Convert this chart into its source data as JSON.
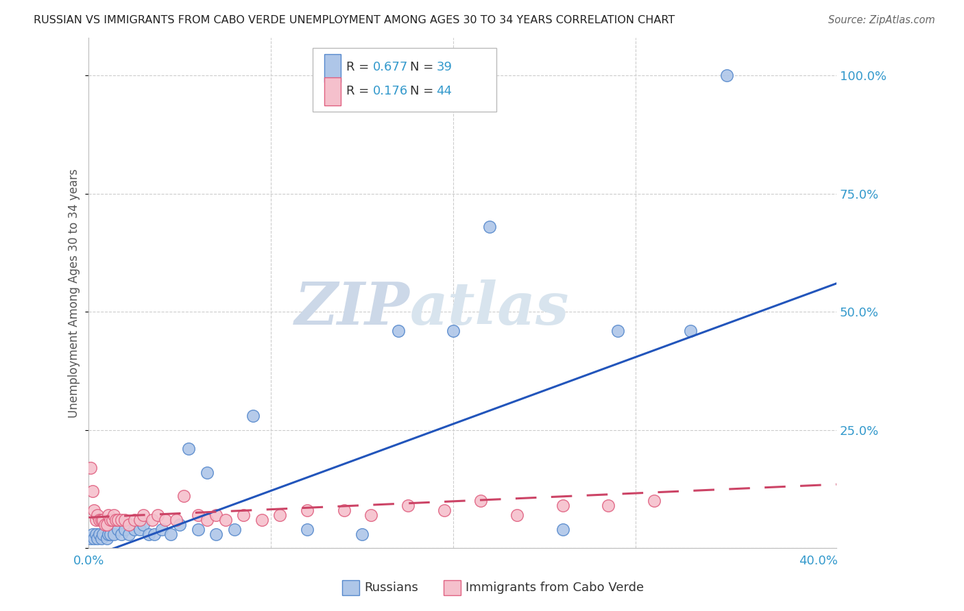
{
  "title": "RUSSIAN VS IMMIGRANTS FROM CABO VERDE UNEMPLOYMENT AMONG AGES 30 TO 34 YEARS CORRELATION CHART",
  "source": "Source: ZipAtlas.com",
  "xlabel_ticks": [
    "0.0%",
    "",
    "",
    "",
    "40.0%"
  ],
  "xlabel_vals": [
    0.0,
    0.1,
    0.2,
    0.3,
    0.4
  ],
  "ylabel": "Unemployment Among Ages 30 to 34 years",
  "ylabel_ticks_right": [
    "100.0%",
    "75.0%",
    "50.0%",
    "25.0%",
    ""
  ],
  "ylabel_vals": [
    1.0,
    0.75,
    0.5,
    0.25,
    0.0
  ],
  "xlim": [
    0.0,
    0.41
  ],
  "ylim": [
    0.0,
    1.08
  ],
  "russian_R": 0.677,
  "russian_N": 39,
  "cabo_verde_R": 0.176,
  "cabo_verde_N": 44,
  "russian_color": "#aec6e8",
  "russian_edge_color": "#5588cc",
  "cabo_verde_color": "#f5c0cc",
  "cabo_verde_edge_color": "#e06080",
  "trend_russian_color": "#2255bb",
  "trend_cabo_verde_color": "#cc4466",
  "watermark_top": "ZIP",
  "watermark_bottom": "atlas",
  "watermark_color": "#ccd8e8",
  "russians_x": [
    0.001,
    0.002,
    0.003,
    0.004,
    0.005,
    0.006,
    0.007,
    0.008,
    0.01,
    0.011,
    0.012,
    0.014,
    0.016,
    0.018,
    0.02,
    0.022,
    0.025,
    0.028,
    0.03,
    0.033,
    0.036,
    0.04,
    0.045,
    0.05,
    0.055,
    0.06,
    0.065,
    0.07,
    0.08,
    0.09,
    0.12,
    0.15,
    0.17,
    0.2,
    0.22,
    0.26,
    0.29,
    0.33,
    0.35
  ],
  "russians_y": [
    0.02,
    0.03,
    0.02,
    0.03,
    0.02,
    0.03,
    0.02,
    0.03,
    0.02,
    0.03,
    0.03,
    0.03,
    0.04,
    0.03,
    0.04,
    0.03,
    0.04,
    0.04,
    0.05,
    0.03,
    0.03,
    0.04,
    0.03,
    0.05,
    0.21,
    0.04,
    0.16,
    0.03,
    0.04,
    0.28,
    0.04,
    0.03,
    0.46,
    0.46,
    0.68,
    0.04,
    0.46,
    0.46,
    1.0
  ],
  "cabo_verde_x": [
    0.001,
    0.002,
    0.003,
    0.004,
    0.005,
    0.006,
    0.007,
    0.008,
    0.009,
    0.01,
    0.011,
    0.012,
    0.013,
    0.014,
    0.015,
    0.016,
    0.018,
    0.02,
    0.022,
    0.025,
    0.028,
    0.03,
    0.035,
    0.038,
    0.042,
    0.048,
    0.052,
    0.06,
    0.065,
    0.07,
    0.075,
    0.085,
    0.095,
    0.105,
    0.12,
    0.14,
    0.155,
    0.175,
    0.195,
    0.215,
    0.235,
    0.26,
    0.285,
    0.31
  ],
  "cabo_verde_y": [
    0.17,
    0.12,
    0.08,
    0.06,
    0.07,
    0.06,
    0.06,
    0.06,
    0.05,
    0.05,
    0.07,
    0.06,
    0.06,
    0.07,
    0.06,
    0.06,
    0.06,
    0.06,
    0.05,
    0.06,
    0.06,
    0.07,
    0.06,
    0.07,
    0.06,
    0.06,
    0.11,
    0.07,
    0.06,
    0.07,
    0.06,
    0.07,
    0.06,
    0.07,
    0.08,
    0.08,
    0.07,
    0.09,
    0.08,
    0.1,
    0.07,
    0.09,
    0.09,
    0.1
  ],
  "trend_russian_x0": 0.0,
  "trend_russian_y0": -0.02,
  "trend_russian_x1": 0.41,
  "trend_russian_y1": 0.56,
  "trend_cabo_x0": 0.0,
  "trend_cabo_y0": 0.065,
  "trend_cabo_x1": 0.41,
  "trend_cabo_y1": 0.135
}
